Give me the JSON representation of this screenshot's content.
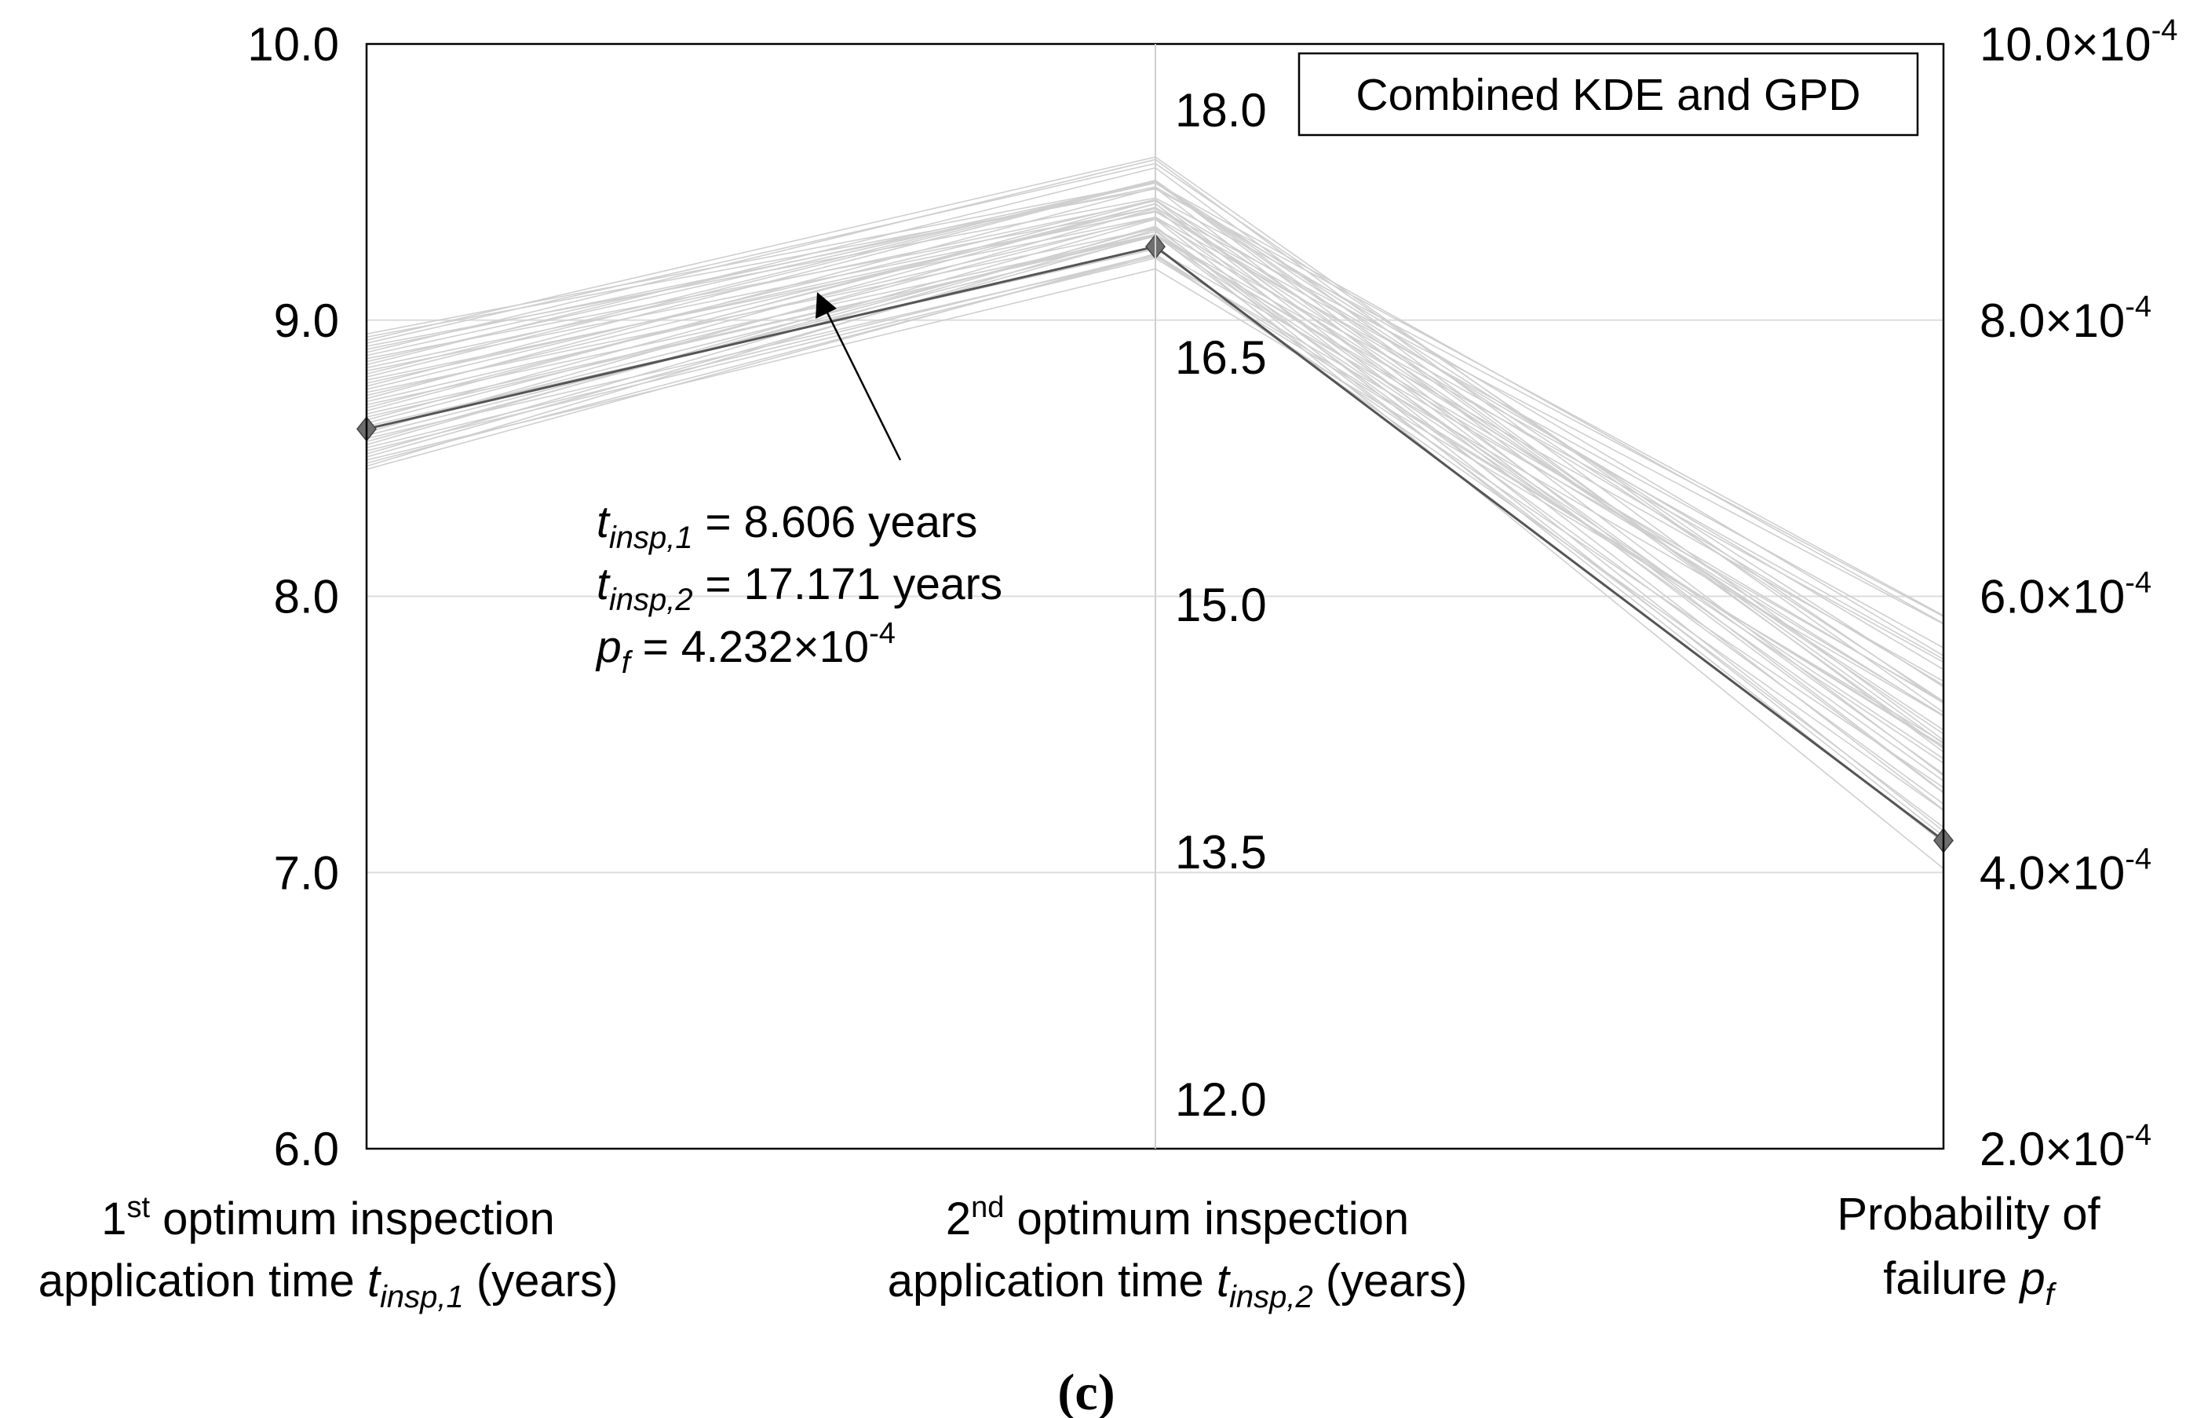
{
  "chart_data": {
    "type": "parallel-coordinates",
    "legend": "Combined KDE and GPD",
    "panel_label": "(c)",
    "axes": [
      {
        "name": "t_insp,1",
        "range": [
          6.0,
          10.0
        ],
        "ticks": [
          "10.0",
          "9.0",
          "8.0",
          "7.0",
          "6.0"
        ],
        "tick_values": [
          10.0,
          9.0,
          8.0,
          7.0,
          6.0
        ],
        "label_line1": {
          "pre": "1",
          "sup": "st",
          "post": " optimum inspection"
        },
        "label_line2": {
          "pre": "application time ",
          "var": "t",
          "sub": "insp,1",
          "post": " (years)"
        }
      },
      {
        "name": "t_insp,2",
        "range": [
          11.7,
          18.4
        ],
        "ticks": [
          "18.0",
          "16.5",
          "15.0",
          "13.5",
          "12.0"
        ],
        "tick_values": [
          18.0,
          16.5,
          15.0,
          13.5,
          12.0
        ],
        "label_line1": {
          "pre": "2",
          "sup": "nd",
          "post": " optimum inspection"
        },
        "label_line2": {
          "pre": "application time ",
          "var": "t",
          "sub": "insp,2",
          "post": " (years)"
        }
      },
      {
        "name": "p_f",
        "range": [
          0.0002,
          0.001
        ],
        "ticks": [
          {
            "mant": "10.0×10",
            "exp": "-4"
          },
          {
            "mant": "8.0×10",
            "exp": "-4"
          },
          {
            "mant": "6.0×10",
            "exp": "-4"
          },
          {
            "mant": "4.0×10",
            "exp": "-4"
          },
          {
            "mant": "2.0×10",
            "exp": "-4"
          }
        ],
        "tick_values": [
          0.001,
          0.0008,
          0.0006,
          0.0004,
          0.0002
        ],
        "label_line1": {
          "pre": "Probability of"
        },
        "label_line2": {
          "pre": "failure ",
          "var": "p",
          "sub": "f"
        }
      }
    ],
    "optimum": {
      "t_insp1": 8.606,
      "t_insp2": 17.171,
      "pf": 0.0004232
    },
    "samples": {
      "count": 45,
      "t_insp1_range": [
        8.46,
        8.95
      ],
      "t_insp2_offset_range": [
        -0.18,
        0.6
      ],
      "pf_range": [
        0.0004,
        0.0006
      ]
    },
    "annotation": {
      "line1": {
        "var": "t",
        "sub": "insp,1",
        "rest": " = 8.606 years"
      },
      "line2": {
        "var": "t",
        "sub": "insp,2",
        "rest": " = 17.171 years"
      },
      "line3": {
        "var": "p",
        "sub": "f",
        "rest": " = 4.232×10",
        "exp": "-4"
      }
    },
    "colors": {
      "sample_line": "#cfcfcf",
      "optimum_line": "#555555",
      "marker": "#6e6e6e",
      "grid": "#dddddd"
    }
  }
}
